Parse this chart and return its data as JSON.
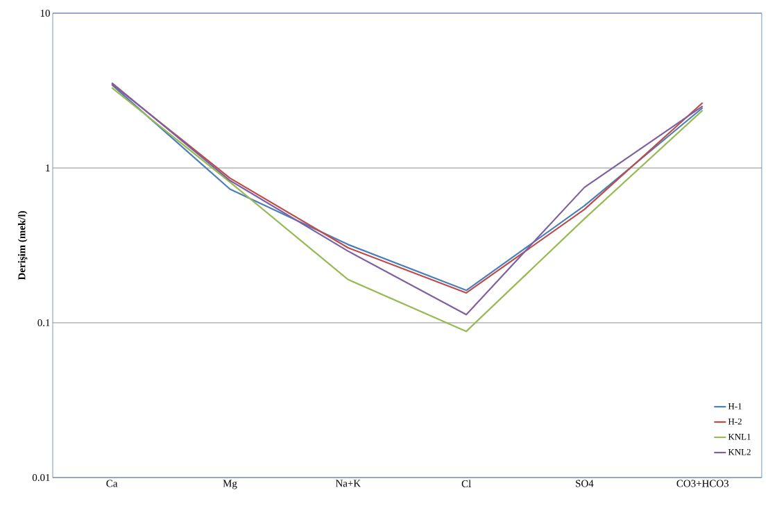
{
  "chart_data": {
    "type": "line",
    "ylabel": "**Derişim (mek/l)**",
    "categories": [
      "Ca",
      "Mg",
      "Na+K",
      "Cl",
      "SO4",
      "CO3+HCO3"
    ],
    "series": [
      {
        "name": "H-1",
        "color": "#4a7ebb",
        "values": [
          3.45,
          0.73,
          0.32,
          0.162,
          0.57,
          2.45
        ]
      },
      {
        "name": "H-2",
        "color": "#be4b48",
        "values": [
          3.5,
          0.86,
          0.305,
          0.156,
          0.54,
          2.64
        ]
      },
      {
        "name": "KNL1",
        "color": "#98b954",
        "values": [
          3.3,
          0.81,
          0.19,
          0.088,
          0.47,
          2.36
        ]
      },
      {
        "name": "KNL2",
        "color": "#7d60a0",
        "values": [
          3.55,
          0.83,
          0.29,
          0.113,
          0.75,
          2.51
        ]
      }
    ],
    "log": true,
    "ylim": [
      0.01,
      10
    ],
    "yticks": [
      0.01,
      0.1,
      1,
      10
    ],
    "grid": "y",
    "legend": "bottom right",
    "marker": "none",
    "line_style": "solid"
  }
}
